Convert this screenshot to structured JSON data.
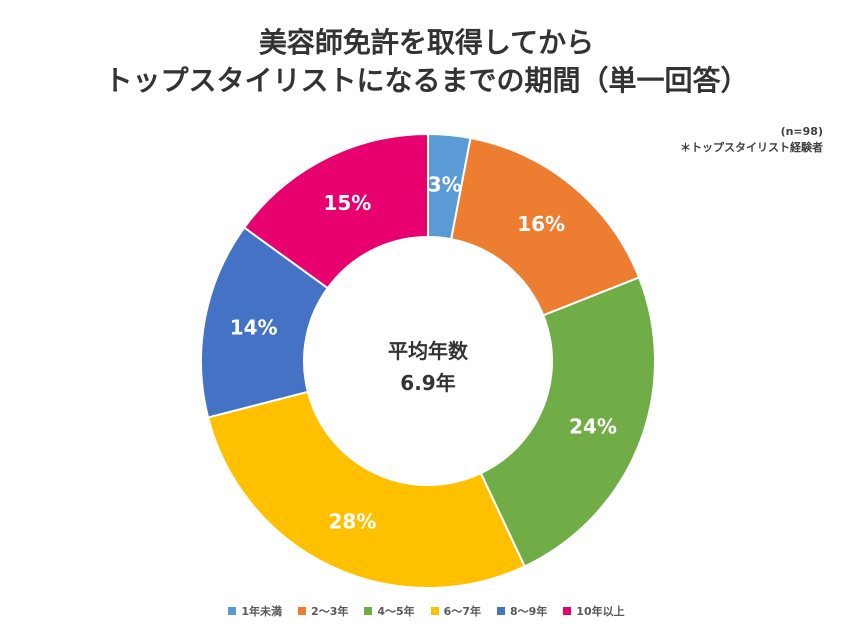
{
  "chart_data": {
    "type": "pie",
    "title_lines": [
      "美容師免許を取得してから",
      "トップスタイリストになるまでの期間（単一回答）"
    ],
    "note_lines": [
      "(n=98)",
      "＊トップスタイリスト経験者"
    ],
    "center_lines": [
      "平均年数",
      "6.9年"
    ],
    "categories": [
      "1年未満",
      "2〜3年",
      "4〜5年",
      "6〜7年",
      "8〜9年",
      "10年以上"
    ],
    "values": [
      3,
      16,
      24,
      28,
      14,
      15
    ],
    "labels": [
      "3%",
      "16%",
      "24%",
      "28%",
      "14%",
      "15%"
    ],
    "colors": [
      "#5B9BD5",
      "#ED7D31",
      "#70AD47",
      "#FFC000",
      "#4472C4",
      "#E8006E"
    ],
    "legend_position": "bottom"
  }
}
